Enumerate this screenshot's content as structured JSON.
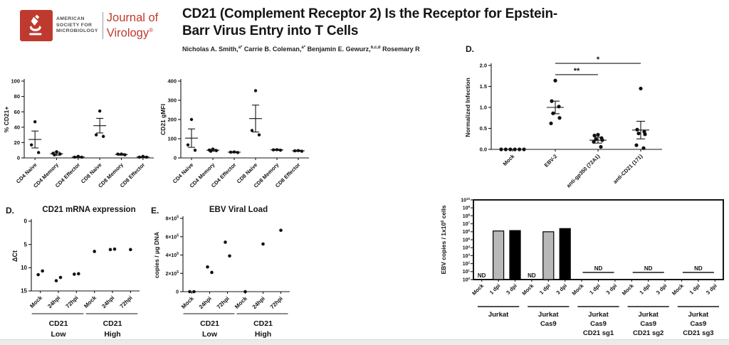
{
  "header": {
    "logo": {
      "society_lines": [
        "AMERICAN",
        "SOCIETY FOR",
        "MICROBIOLOGY"
      ],
      "journal_line1": "Journal of",
      "journal_line2": "Virology",
      "registered": "®",
      "brand_color": "#bf3a2e"
    },
    "title_line1": "CD21 (Complement Receptor 2) Is the Receptor for Epstein-",
    "title_line2": "Barr Virus Entry into T Cells",
    "authors": [
      {
        "name": "Nicholas A. Smith,",
        "sup": "a*"
      },
      {
        "name": " Carrie B. Coleman,",
        "sup": "a*"
      },
      {
        "name": " Benjamin E. Gewurz,",
        "sup": "b,c,d"
      },
      {
        "name": " Rosemary R",
        "sup": ""
      }
    ]
  },
  "chart_data": [
    {
      "type": "scatter",
      "panel_label": "",
      "title": "",
      "ylabel": "% CD21+",
      "ylim": [
        0,
        100
      ],
      "yticks": [
        {
          "v": 0,
          "l": "0"
        },
        {
          "v": 20,
          "l": "20"
        },
        {
          "v": 40,
          "l": "40"
        },
        {
          "v": 60,
          "l": "60"
        },
        {
          "v": 80,
          "l": "80"
        },
        {
          "v": 100,
          "l": "100"
        }
      ],
      "categories": [
        "CD4 Naive",
        "CD4 Memory",
        "CD4 Effector",
        "CD8 Naive",
        "CD8 Memory",
        "CD8 Effector"
      ],
      "points": [
        [
          47,
          17,
          7
        ],
        [
          8,
          6,
          5,
          4
        ],
        [
          2,
          1,
          1
        ],
        [
          61,
          30,
          28
        ],
        [
          5,
          5,
          4
        ],
        [
          2,
          1,
          1
        ]
      ],
      "mean": [
        24,
        5.5,
        1.2,
        42,
        4.5,
        1.2
      ],
      "err": [
        11,
        2,
        0.6,
        9.5,
        1,
        0.6
      ]
    },
    {
      "type": "scatter",
      "panel_label": "",
      "title": "",
      "ylabel": "CD21 gMFI",
      "ylim": [
        0,
        400
      ],
      "yticks": [
        {
          "v": 0,
          "l": "0"
        },
        {
          "v": 100,
          "l": "100"
        },
        {
          "v": 200,
          "l": "200"
        },
        {
          "v": 300,
          "l": "300"
        },
        {
          "v": 400,
          "l": "400"
        }
      ],
      "categories": [
        "CD4 Naive",
        "CD4 Memory",
        "CD4 Effector",
        "CD8 Naive",
        "CD8 Memory",
        "CD8 Effector"
      ],
      "points": [
        [
          200,
          68,
          40
        ],
        [
          46,
          41,
          38,
          35
        ],
        [
          31,
          30,
          28
        ],
        [
          350,
          143,
          120
        ],
        [
          43,
          42,
          40
        ],
        [
          38,
          37,
          35
        ]
      ],
      "mean": [
        103,
        40,
        30,
        205,
        42,
        37
      ],
      "err": [
        48,
        5,
        3,
        70,
        3,
        3
      ]
    },
    {
      "type": "scatter",
      "panel_label": "D.",
      "title": "",
      "ylabel": "Normalized Infection",
      "ylim": [
        0,
        2
      ],
      "yticks": [
        {
          "v": 0,
          "l": "0.0"
        },
        {
          "v": 0.5,
          "l": "0.5"
        },
        {
          "v": 1,
          "l": "1.0"
        },
        {
          "v": 1.5,
          "l": "1.5"
        },
        {
          "v": 2,
          "l": "2.0"
        }
      ],
      "categories": [
        "Mock",
        "EBV-2",
        "anti-gp350 (72A1)",
        "anti-CD21 (171)"
      ],
      "points": [
        [
          0,
          0,
          0,
          0,
          0,
          0
        ],
        [
          1.64,
          1.15,
          1.02,
          0.86,
          0.75,
          0.62
        ],
        [
          0.35,
          0.33,
          0.27,
          0.24,
          0.22,
          0.18,
          0.06
        ],
        [
          1.45,
          0.47,
          0.42,
          0.38,
          0.36,
          0.1,
          0.03
        ]
      ],
      "mean": [
        null,
        1.0,
        0.22,
        0.46
      ],
      "err": [
        null,
        0.15,
        0.07,
        0.21
      ],
      "sig": [
        {
          "from": 1,
          "to": 2,
          "y": 1.78,
          "label": "**"
        },
        {
          "from": 1,
          "to": 3,
          "y": 2.05,
          "label": "*"
        }
      ]
    },
    {
      "type": "scatter",
      "panel_label": "D.",
      "title": "CD21 mRNA expression",
      "ylabel": "ΔCt",
      "ylim": [
        15,
        0
      ],
      "yticks": [
        {
          "v": 0,
          "l": "0"
        },
        {
          "v": 5,
          "l": "5"
        },
        {
          "v": 10,
          "l": "10"
        },
        {
          "v": 15,
          "l": "15"
        }
      ],
      "categories": [
        "Mock",
        "24hpi",
        "72hpi",
        "Mock",
        "24hpi",
        "72hpi"
      ],
      "points": [
        [
          11.5,
          10.7
        ],
        [
          12.8,
          12.1
        ],
        [
          11.4,
          11.3
        ],
        [
          6.5
        ],
        [
          6.1,
          6.0
        ],
        [
          6.1
        ]
      ],
      "mean": null,
      "err": null,
      "group_labels": [
        {
          "from": 0,
          "to": 2,
          "lines": [
            "CD21",
            "Low"
          ]
        },
        {
          "from": 3,
          "to": 5,
          "lines": [
            "CD21",
            "High"
          ]
        }
      ]
    },
    {
      "type": "scatter",
      "panel_label": "E.",
      "title": "EBV Viral Load",
      "ylabel": "copies / μg DNA",
      "ylim": [
        0,
        800000
      ],
      "yticks": [
        {
          "v": 0,
          "l": "0"
        },
        {
          "v": 200000,
          "l": "2×10",
          "s": "5"
        },
        {
          "v": 400000,
          "l": "4×10",
          "s": "5"
        },
        {
          "v": 600000,
          "l": "6×10",
          "s": "5"
        },
        {
          "v": 800000,
          "l": "8×10",
          "s": "5"
        }
      ],
      "categories": [
        "Mock",
        "24hpi",
        "72hpi",
        "Mock",
        "24hpi",
        "72hpi"
      ],
      "points": [
        [
          0,
          0
        ],
        [
          270000,
          210000
        ],
        [
          540000,
          390000
        ],
        [
          0
        ],
        [
          520000
        ],
        [
          670000
        ]
      ],
      "mean": null,
      "err": null,
      "group_labels": [
        {
          "from": 0,
          "to": 2,
          "lines": [
            "CD21",
            "Low"
          ]
        },
        {
          "from": 3,
          "to": 5,
          "lines": [
            "CD21",
            "High"
          ]
        }
      ]
    },
    {
      "type": "log-bar",
      "panel_label": "",
      "title": "",
      "ylabel": {
        "pre": "EBV copies / 1x10",
        "sup": "6",
        "post": " cells"
      },
      "log_range": [
        0,
        10
      ],
      "slot_labels": [
        "Mock",
        "1 dpi",
        "3 dpi"
      ],
      "nd_label": "ND",
      "bar_colors": {
        "gray": "#b8b8b8",
        "black": "#000000"
      },
      "groups": [
        {
          "lines": [
            "Jurkat"
          ],
          "nd_slot": 0,
          "bars": [
            {
              "slot": 1,
              "log": 6.1,
              "color": "gray"
            },
            {
              "slot": 2,
              "log": 6.15,
              "color": "black"
            }
          ]
        },
        {
          "lines": [
            "Jurkat",
            "Cas9"
          ],
          "nd_slot": 0,
          "bars": [
            {
              "slot": 1,
              "log": 6.0,
              "color": "gray"
            },
            {
              "slot": 2,
              "log": 6.4,
              "color": "black"
            }
          ]
        },
        {
          "lines": [
            "Jurkat",
            "Cas9",
            "CD21 sg1"
          ],
          "nd_span": true,
          "bars": []
        },
        {
          "lines": [
            "Jurkat",
            "Cas9",
            "CD21 sg2"
          ],
          "nd_span": true,
          "bars": []
        },
        {
          "lines": [
            "Jurkat",
            "Cas9",
            "CD21 sg3"
          ],
          "nd_span": true,
          "bars": []
        }
      ]
    }
  ]
}
